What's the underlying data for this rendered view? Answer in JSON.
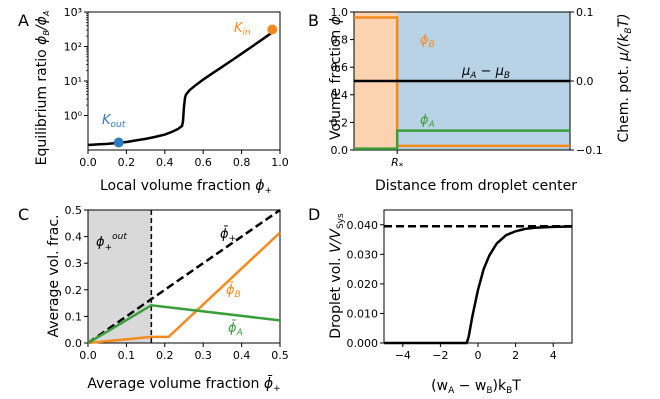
{
  "colors": {
    "black": "#000000",
    "orange": "#f58a1f",
    "blue": "#2f7bbf",
    "green": "#3a9e3a",
    "orange_fill": "#fbd3b0",
    "blue_fill": "#b9d3e6",
    "gray_fill": "#d9d9d9"
  },
  "chart_data": [
    {
      "panel": "A",
      "type": "line",
      "xlabel": "Local volume fraction ϕ+",
      "ylabel": "Equilibrium ratio ϕB/ϕA",
      "yscale": "log",
      "xlim": [
        0.0,
        1.0
      ],
      "ylim": [
        0.1,
        1000
      ],
      "xticks": [
        "0.0",
        "0.2",
        "0.4",
        "0.6",
        "0.8",
        "1.0"
      ],
      "yticks": [
        "10⁰",
        "10¹",
        "10²",
        "10³"
      ],
      "yticks_values": [
        1,
        10,
        100,
        1000
      ],
      "series": [
        {
          "color": "black",
          "x": [
            0.0,
            0.05,
            0.1,
            0.15,
            0.2,
            0.25,
            0.3,
            0.35,
            0.4,
            0.44,
            0.47,
            0.49,
            0.495,
            0.5,
            0.505,
            0.51,
            0.53,
            0.56,
            0.6,
            0.65,
            0.7,
            0.75,
            0.8,
            0.85,
            0.9,
            0.95,
            0.98
          ],
          "y": [
            0.14,
            0.145,
            0.15,
            0.16,
            0.17,
            0.19,
            0.21,
            0.24,
            0.28,
            0.34,
            0.41,
            0.5,
            0.7,
            1.8,
            3.2,
            4.0,
            5.5,
            7.5,
            11,
            17,
            26,
            40,
            62,
            96,
            150,
            235,
            320
          ]
        }
      ],
      "points": [
        {
          "label": "K_out",
          "x": 0.16,
          "y": 0.165,
          "color": "blue"
        },
        {
          "label": "K_in",
          "x": 0.96,
          "y": 310,
          "color": "orange"
        }
      ]
    },
    {
      "panel": "B",
      "type": "line",
      "xlabel": "Distance from droplet center",
      "ylabel": "Volume fraction ϕ",
      "ylabel_right": "Chem. pot. μ/(k_BT)",
      "ylim": [
        0.0,
        1.0
      ],
      "ylim_right": [
        -0.1,
        0.1
      ],
      "yticks": [
        "0.0",
        "0.2",
        "0.4",
        "0.6",
        "0.8",
        "1.0"
      ],
      "yticks_right": [
        "−0.1",
        "0.0",
        "0.1"
      ],
      "xtick_label": "R*",
      "regions": [
        {
          "name": "inside droplet",
          "x": [
            0.0,
            0.2
          ],
          "color": "orange_fill"
        },
        {
          "name": "outside droplet",
          "x": [
            0.2,
            1.0
          ],
          "color": "blue_fill"
        }
      ],
      "series": [
        {
          "name": "ϕB",
          "color": "orange",
          "x": [
            0.0,
            0.2,
            0.2,
            1.0
          ],
          "y": [
            0.96,
            0.96,
            0.03,
            0.03
          ]
        },
        {
          "name": "ϕA",
          "color": "green",
          "x": [
            0.0,
            0.2,
            0.2,
            1.0
          ],
          "y": [
            0.01,
            0.01,
            0.14,
            0.14
          ]
        },
        {
          "name": "μA − μB",
          "color": "black",
          "axis": "right",
          "x": [
            0.0,
            1.0
          ],
          "y": [
            0.0,
            0.0
          ]
        }
      ],
      "annotations": [
        "ϕB",
        "ϕA",
        "μA − μB"
      ]
    },
    {
      "panel": "C",
      "type": "line",
      "xlabel": "Average volume fraction ϕ̄+",
      "ylabel": "Average vol. frac.",
      "xlim": [
        0.0,
        0.5
      ],
      "ylim": [
        0.0,
        0.5
      ],
      "xticks": [
        "0.0",
        "0.1",
        "0.2",
        "0.3",
        "0.4",
        "0.5"
      ],
      "yticks": [
        "0.0",
        "0.1",
        "0.2",
        "0.3",
        "0.4",
        "0.5"
      ],
      "shaded_region": {
        "x": [
          0.0,
          0.165
        ],
        "color": "gray_fill",
        "label": "ϕ+^out"
      },
      "vline": 0.165,
      "series": [
        {
          "name": "ϕ̄+",
          "color": "black",
          "dashed": true,
          "x": [
            0.0,
            0.5
          ],
          "y": [
            0.0,
            0.5
          ]
        },
        {
          "name": "ϕ̄B",
          "color": "orange",
          "x": [
            0.0,
            0.165,
            0.21,
            0.5
          ],
          "y": [
            0.0,
            0.023,
            0.023,
            0.415
          ]
        },
        {
          "name": "ϕ̄A",
          "color": "green",
          "x": [
            0.0,
            0.165,
            0.5
          ],
          "y": [
            0.0,
            0.142,
            0.085
          ]
        }
      ]
    },
    {
      "panel": "D",
      "type": "line",
      "xlabel": "(wA − wB)kBT",
      "ylabel": "Droplet vol. V/V_Sys",
      "xlim": [
        -5.0,
        5.0
      ],
      "ylim": [
        0.0,
        0.045
      ],
      "xticks": [
        "−4",
        "−2",
        "0",
        "2",
        "4"
      ],
      "xticks_values": [
        -4,
        -2,
        0,
        2,
        4
      ],
      "yticks": [
        "0.000",
        "0.010",
        "0.020",
        "0.030",
        "0.040"
      ],
      "yticks_values": [
        0.0,
        0.01,
        0.02,
        0.03,
        0.04
      ],
      "series": [
        {
          "name": "asymptote",
          "color": "black",
          "dashed": true,
          "x": [
            -5.0,
            5.0
          ],
          "y": [
            0.0395,
            0.0395
          ]
        },
        {
          "color": "black",
          "x": [
            -5.0,
            -0.6,
            -0.5,
            -0.3,
            0.0,
            0.3,
            0.6,
            1.0,
            1.5,
            2.0,
            2.5,
            3.0,
            4.0,
            5.0
          ],
          "y": [
            0.0,
            0.0,
            0.002,
            0.009,
            0.018,
            0.025,
            0.0296,
            0.0337,
            0.0365,
            0.0378,
            0.0386,
            0.039,
            0.0393,
            0.0394
          ]
        }
      ]
    }
  ]
}
